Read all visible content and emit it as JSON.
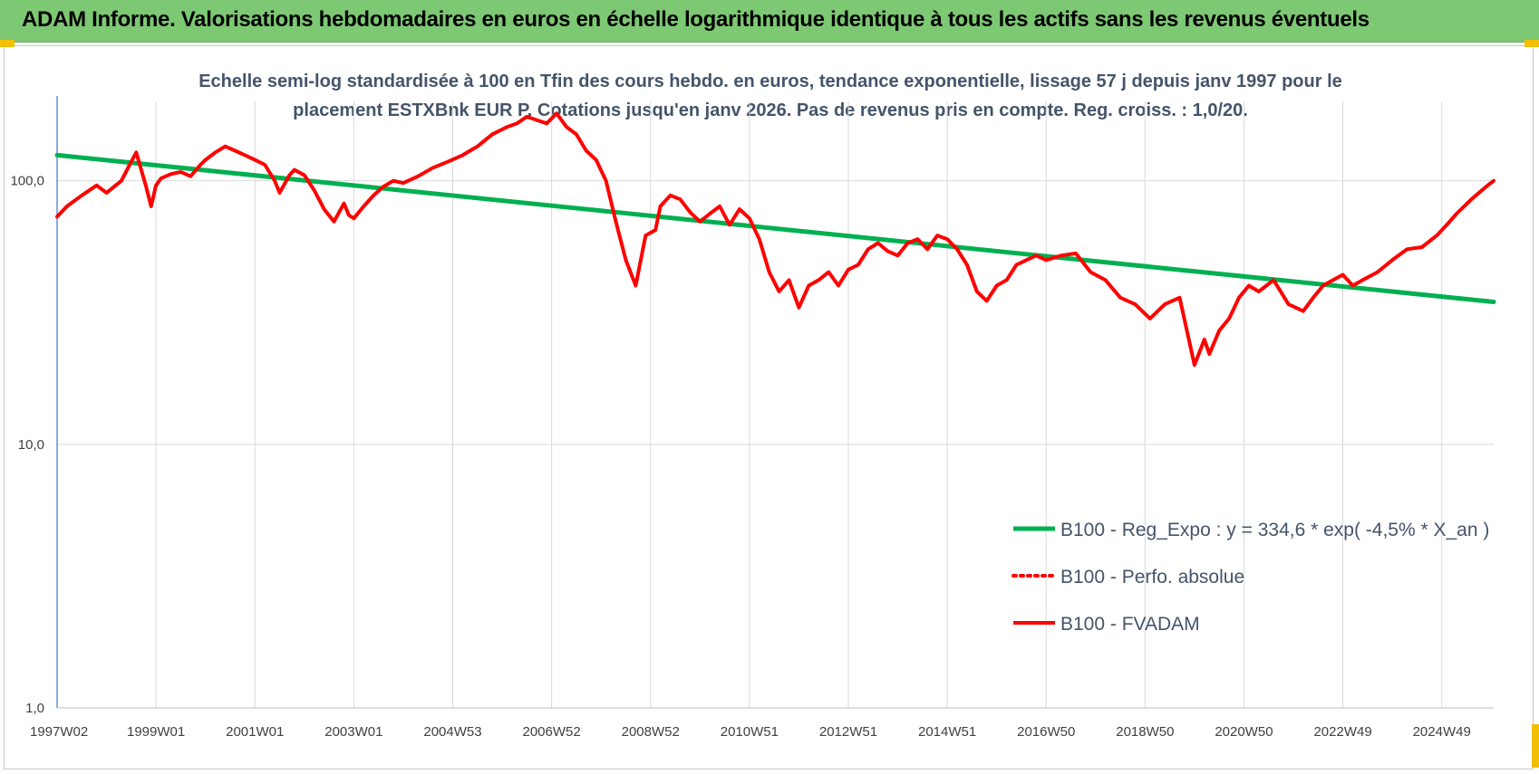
{
  "banner": {
    "title": "ADAM Informe. Valorisations hebdomadaires en euros en échelle logarithmique identique à tous les actifs sans les revenus éventuels"
  },
  "colors": {
    "banner_bg": "#7dc873",
    "trend": "#00b050",
    "series": "#ff0000",
    "subtitle": "#44546a",
    "corner_accent": "#f2c000"
  },
  "chart_data": {
    "type": "line",
    "title": "Echelle semi-log standardisée à 100 en Tfin des cours hebdo. en euros, tendance exponentielle, lissage 57 j depuis janv 1997 pour le placement ESTXBnk EUR P. Cotations jusqu'en janv 2026. Pas de revenus pris en compte. Reg. croiss. : 1,0/20.",
    "title_lines": [
      "Echelle semi-log standardisée à 100 en Tfin des cours hebdo. en euros, tendance exponentielle, lissage 57 j depuis janv 1997 pour le",
      "placement ESTXBnk EUR P. Cotations jusqu'en janv 2026. Pas de revenus pris en compte. Reg. croiss. : 1,0/20."
    ],
    "y_scale": "log",
    "ylim": [
      1,
      200
    ],
    "y_ticks": [
      {
        "value": 1,
        "label": "1,0"
      },
      {
        "value": 10,
        "label": "10,0"
      },
      {
        "value": 100,
        "label": "100,0"
      }
    ],
    "xlim": [
      1997.0,
      2026.05
    ],
    "x_ticks": [
      {
        "value": 1997.0,
        "label": "1997W02"
      },
      {
        "value": 1999.0,
        "label": "1999W01"
      },
      {
        "value": 2001.0,
        "label": "2001W01"
      },
      {
        "value": 2003.0,
        "label": "2003W01"
      },
      {
        "value": 2005.0,
        "label": "2004W53"
      },
      {
        "value": 2007.0,
        "label": "2006W52"
      },
      {
        "value": 2009.0,
        "label": "2008W52"
      },
      {
        "value": 2011.0,
        "label": "2010W51"
      },
      {
        "value": 2013.0,
        "label": "2012W51"
      },
      {
        "value": 2015.0,
        "label": "2014W51"
      },
      {
        "value": 2017.0,
        "label": "2016W50"
      },
      {
        "value": 2019.0,
        "label": "2018W50"
      },
      {
        "value": 2021.0,
        "label": "2020W50"
      },
      {
        "value": 2023.0,
        "label": "2022W49"
      },
      {
        "value": 2025.0,
        "label": "2024W49"
      }
    ],
    "grid": {
      "vertical": true,
      "horizontal": true
    },
    "legend_position": "right-middle",
    "series": [
      {
        "name": "B100 - Reg_Expo : y = 334,6 * exp( -4,5% *  X_an )",
        "style": "solid",
        "color": "#00b050",
        "x": [
          1997.0,
          2026.05
        ],
        "y": [
          125.0,
          34.7
        ]
      },
      {
        "name": "B100 - Perfo. absolue",
        "style": "dotted",
        "color": "#ff0000",
        "x": [],
        "y": []
      },
      {
        "name": "B100 - FVADAM",
        "style": "solid",
        "color": "#ff0000",
        "x": [
          1997.0,
          1997.2,
          1997.5,
          1997.8,
          1998.0,
          1998.3,
          1998.5,
          1998.6,
          1998.8,
          1998.9,
          1999.0,
          1999.1,
          1999.3,
          1999.5,
          1999.7,
          1999.9,
          2000.0,
          2000.2,
          2000.4,
          2000.6,
          2000.8,
          2001.0,
          2001.2,
          2001.4,
          2001.5,
          2001.7,
          2001.8,
          2002.0,
          2002.2,
          2002.4,
          2002.6,
          2002.8,
          2002.9,
          2003.0,
          2003.2,
          2003.4,
          2003.6,
          2003.8,
          2004.0,
          2004.3,
          2004.6,
          2004.9,
          2005.2,
          2005.5,
          2005.8,
          2006.1,
          2006.3,
          2006.5,
          2006.7,
          2006.9,
          2007.1,
          2007.3,
          2007.5,
          2007.7,
          2007.9,
          2008.1,
          2008.3,
          2008.5,
          2008.7,
          2008.9,
          2009.1,
          2009.2,
          2009.4,
          2009.6,
          2009.8,
          2010.0,
          2010.2,
          2010.4,
          2010.6,
          2010.8,
          2011.0,
          2011.2,
          2011.4,
          2011.6,
          2011.8,
          2012.0,
          2012.2,
          2012.4,
          2012.6,
          2012.8,
          2013.0,
          2013.2,
          2013.4,
          2013.6,
          2013.8,
          2014.0,
          2014.2,
          2014.4,
          2014.6,
          2014.8,
          2015.0,
          2015.2,
          2015.4,
          2015.6,
          2015.8,
          2016.0,
          2016.2,
          2016.4,
          2016.6,
          2016.8,
          2017.0,
          2017.3,
          2017.6,
          2017.9,
          2018.2,
          2018.5,
          2018.8,
          2019.1,
          2019.4,
          2019.7,
          2020.0,
          2020.2,
          2020.3,
          2020.5,
          2020.7,
          2020.9,
          2021.1,
          2021.3,
          2021.6,
          2021.9,
          2022.2,
          2022.4,
          2022.6,
          2022.8,
          2023.0,
          2023.2,
          2023.4,
          2023.7,
          2024.0,
          2024.3,
          2024.6,
          2024.9,
          2025.1,
          2025.3,
          2025.6,
          2025.9,
          2026.05
        ],
        "y": [
          73,
          80,
          88,
          96,
          90,
          100,
          118,
          128,
          95,
          80,
          96,
          102,
          106,
          108,
          104,
          115,
          120,
          128,
          135,
          130,
          125,
          120,
          115,
          100,
          90,
          105,
          110,
          105,
          92,
          78,
          70,
          82,
          74,
          72,
          80,
          88,
          95,
          100,
          98,
          104,
          112,
          118,
          125,
          135,
          150,
          160,
          165,
          175,
          170,
          165,
          180,
          160,
          150,
          130,
          120,
          100,
          70,
          50,
          40,
          62,
          65,
          80,
          88,
          85,
          76,
          70,
          75,
          80,
          68,
          78,
          72,
          60,
          45,
          38,
          42,
          33,
          40,
          42,
          45,
          40,
          46,
          48,
          55,
          58,
          54,
          52,
          58,
          60,
          55,
          62,
          60,
          55,
          48,
          38,
          35,
          40,
          42,
          48,
          50,
          52,
          50,
          52,
          53,
          45,
          42,
          36,
          34,
          30,
          34,
          36,
          20,
          25,
          22,
          27,
          30,
          36,
          40,
          38,
          42,
          34,
          32,
          36,
          40,
          42,
          44,
          40,
          42,
          45,
          50,
          55,
          56,
          62,
          68,
          75,
          85,
          95,
          100
        ]
      }
    ]
  }
}
